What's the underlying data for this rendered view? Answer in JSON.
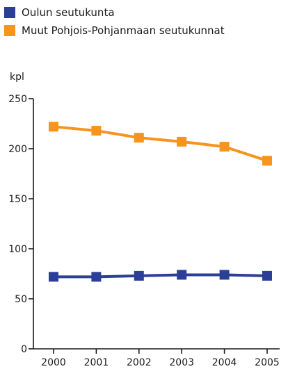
{
  "legend": {
    "items": [
      {
        "label": "Oulun seutukunta",
        "color": "#2b3f96"
      },
      {
        "label": "Muut Pohjois-Pohjanmaan seutukunnat",
        "color": "#f7941d"
      }
    ]
  },
  "chart_data": {
    "type": "line",
    "title": "",
    "xlabel": "",
    "ylabel": "kpl",
    "x": [
      "2000",
      "2001",
      "2002",
      "2003",
      "2004",
      "2005"
    ],
    "ylim": [
      0,
      250
    ],
    "yticks": [
      0,
      50,
      100,
      150,
      200,
      250
    ],
    "grid": false,
    "legend_position": "top-left",
    "series": [
      {
        "name": "Oulun seutukunta",
        "color": "#2b3f96",
        "marker": "square",
        "values": [
          72,
          72,
          73,
          74,
          74,
          73
        ]
      },
      {
        "name": "Muut Pohjois-Pohjanmaan seutukunnat",
        "color": "#f7941d",
        "marker": "square",
        "values": [
          222,
          218,
          211,
          207,
          202,
          188
        ]
      }
    ]
  }
}
